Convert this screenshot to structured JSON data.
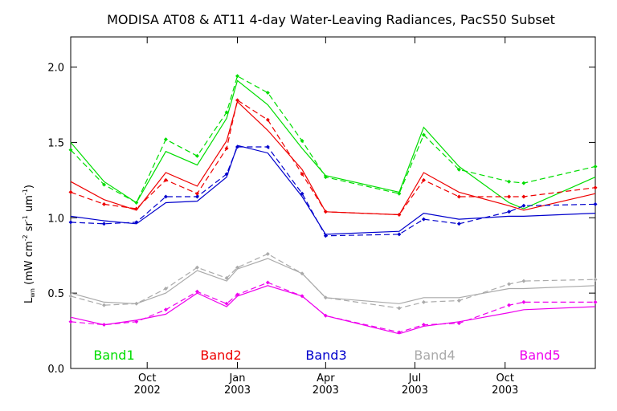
{
  "chart_data": {
    "type": "line",
    "title": "MODISA AT08 & AT11 4-day Water-Leaving Radiances, PacS50 Subset",
    "ylabel": "Lwn (mW cm-2 sr-1 um-1)",
    "ylim": [
      0,
      2.2
    ],
    "yticks": [
      "0.0",
      "0.5",
      "1.0",
      "1.5",
      "2.0"
    ],
    "xlim": [
      "2002-07-15",
      "2004-01-01"
    ],
    "xticks": [
      {
        "date": "2002-10-01",
        "month": "Oct",
        "year": "2002"
      },
      {
        "date": "2003-01-01",
        "month": "Jan",
        "year": "2003"
      },
      {
        "date": "2003-04-01",
        "month": "Apr",
        "year": "2003"
      },
      {
        "date": "2003-07-01",
        "month": "Jul",
        "year": "2003"
      },
      {
        "date": "2003-10-01",
        "month": "Oct",
        "year": "2003"
      }
    ],
    "x": [
      "2002-07-15",
      "2002-08-18",
      "2002-09-20",
      "2002-10-20",
      "2002-11-21",
      "2002-12-21",
      "2003-01-01",
      "2003-02-01",
      "2003-03-08",
      "2003-04-01",
      "2003-06-15",
      "2003-07-10",
      "2003-08-15",
      "2003-10-05",
      "2003-10-20",
      "2004-01-01"
    ],
    "grid": false,
    "legend_position": "bottom",
    "series": [
      {
        "name": "Band1",
        "color": "#00dd00",
        "style": "solid",
        "values": [
          1.5,
          1.24,
          1.1,
          1.44,
          1.35,
          1.66,
          1.91,
          1.75,
          1.46,
          1.28,
          1.17,
          1.6,
          1.34,
          1.1,
          1.06,
          1.27
        ]
      },
      {
        "name": "Band1",
        "color": "#00dd00",
        "style": "dashed",
        "values": [
          1.45,
          1.22,
          1.1,
          1.52,
          1.41,
          1.7,
          1.94,
          1.83,
          1.51,
          1.27,
          1.16,
          1.55,
          1.32,
          1.24,
          1.23,
          1.34
        ]
      },
      {
        "name": "Band2",
        "color": "#ee0000",
        "style": "solid",
        "values": [
          1.24,
          1.12,
          1.05,
          1.3,
          1.21,
          1.51,
          1.77,
          1.58,
          1.32,
          1.04,
          1.02,
          1.3,
          1.17,
          1.08,
          1.05,
          1.16
        ]
      },
      {
        "name": "Band2",
        "color": "#ee0000",
        "style": "dashed",
        "values": [
          1.17,
          1.09,
          1.06,
          1.25,
          1.16,
          1.46,
          1.78,
          1.65,
          1.29,
          1.04,
          1.02,
          1.25,
          1.14,
          1.14,
          1.14,
          1.2
        ]
      },
      {
        "name": "Band3",
        "color": "#0000cc",
        "style": "solid",
        "values": [
          1.01,
          0.98,
          0.96,
          1.1,
          1.11,
          1.27,
          1.48,
          1.43,
          1.14,
          0.89,
          0.91,
          1.03,
          0.99,
          1.01,
          1.01,
          1.03
        ]
      },
      {
        "name": "Band3",
        "color": "#0000cc",
        "style": "dashed",
        "values": [
          0.97,
          0.96,
          0.97,
          1.14,
          1.14,
          1.29,
          1.47,
          1.47,
          1.16,
          0.88,
          0.89,
          0.99,
          0.96,
          1.04,
          1.08,
          1.09
        ]
      },
      {
        "name": "Band4",
        "color": "#aaaaaa",
        "style": "solid",
        "values": [
          0.5,
          0.44,
          0.43,
          0.5,
          0.65,
          0.58,
          0.66,
          0.73,
          0.63,
          0.47,
          0.43,
          0.47,
          0.47,
          0.53,
          0.53,
          0.55
        ]
      },
      {
        "name": "Band4",
        "color": "#aaaaaa",
        "style": "dashed",
        "values": [
          0.48,
          0.42,
          0.43,
          0.53,
          0.67,
          0.6,
          0.67,
          0.76,
          0.63,
          0.47,
          0.4,
          0.44,
          0.45,
          0.56,
          0.58,
          0.59
        ]
      },
      {
        "name": "Band5",
        "color": "#ee00ee",
        "style": "solid",
        "values": [
          0.34,
          0.29,
          0.32,
          0.36,
          0.5,
          0.41,
          0.48,
          0.55,
          0.48,
          0.35,
          0.23,
          0.28,
          0.31,
          0.37,
          0.39,
          0.41
        ]
      },
      {
        "name": "Band5",
        "color": "#ee00ee",
        "style": "dashed",
        "values": [
          0.31,
          0.29,
          0.31,
          0.39,
          0.51,
          0.43,
          0.49,
          0.57,
          0.48,
          0.35,
          0.24,
          0.29,
          0.3,
          0.42,
          0.44,
          0.44
        ]
      }
    ],
    "legend": [
      {
        "label": "Band1",
        "color": "#00dd00"
      },
      {
        "label": "Band2",
        "color": "#ee0000"
      },
      {
        "label": "Band3",
        "color": "#0000cc"
      },
      {
        "label": "Band4",
        "color": "#aaaaaa"
      },
      {
        "label": "Band5",
        "color": "#ee00ee"
      }
    ]
  }
}
